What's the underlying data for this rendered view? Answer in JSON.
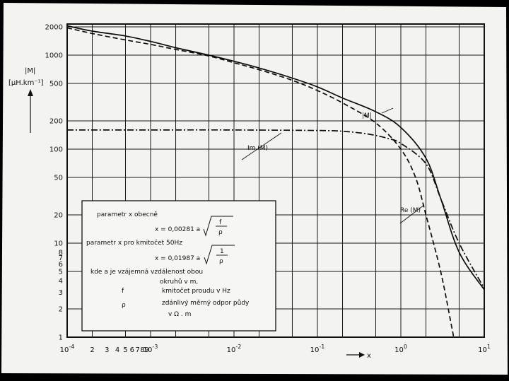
{
  "chart_data": {
    "type": "line",
    "x_scale": "log",
    "y_scale": "log",
    "xlim": [
      0.0001,
      10
    ],
    "ylim": [
      1,
      3000
    ],
    "grid": true,
    "xlabel": "x",
    "ylabel_line1": "|M|",
    "ylabel_line2": "[μH.km⁻¹]",
    "x_major_ticks": [
      {
        "value": 0.0001,
        "base": "10",
        "exp": "-4"
      },
      {
        "value": 0.001,
        "base": "10",
        "exp": "-3"
      },
      {
        "value": 0.01,
        "base": "10",
        "exp": "-2"
      },
      {
        "value": 0.1,
        "base": "10",
        "exp": "-1"
      },
      {
        "value": 1,
        "base": "10",
        "exp": "0"
      },
      {
        "value": 10,
        "base": "10",
        "exp": "1"
      }
    ],
    "x_minor_ticks": [
      {
        "value": 0.0002,
        "label": "2"
      },
      {
        "value": 0.0003,
        "label": "3"
      },
      {
        "value": 0.0004,
        "label": "4"
      },
      {
        "value": 0.0005,
        "label": "5"
      },
      {
        "value": 0.0006,
        "label": "6"
      },
      {
        "value": 0.0007,
        "label": "7"
      },
      {
        "value": 0.0008,
        "label": "8"
      },
      {
        "value": 0.0009,
        "label": "9"
      }
    ],
    "y_ticks": [
      {
        "value": 2000,
        "label": "2000"
      },
      {
        "value": 1000,
        "label": "1000"
      },
      {
        "value": 500,
        "label": "500"
      },
      {
        "value": 200,
        "label": "200"
      },
      {
        "value": 100,
        "label": "100"
      },
      {
        "value": 50,
        "label": "50"
      },
      {
        "value": 20,
        "label": "20"
      },
      {
        "value": 10,
        "label": "10"
      },
      {
        "value": 8,
        "label": "8"
      },
      {
        "value": 7,
        "label": "7"
      },
      {
        "value": 6,
        "label": "6"
      },
      {
        "value": 5,
        "label": "5"
      },
      {
        "value": 4,
        "label": "4"
      },
      {
        "value": 3,
        "label": "3"
      },
      {
        "value": 2,
        "label": "2"
      },
      {
        "value": 1,
        "label": "1"
      }
    ],
    "y_grid": [
      2000,
      1000,
      500,
      200,
      100,
      50,
      20,
      10,
      5,
      2
    ],
    "series": [
      {
        "name": "|M|",
        "style": "solid",
        "points": [
          [
            0.0001,
            2050
          ],
          [
            0.0002,
            1800
          ],
          [
            0.0005,
            1600
          ],
          [
            0.001,
            1400
          ],
          [
            0.002,
            1200
          ],
          [
            0.005,
            1000
          ],
          [
            0.01,
            860
          ],
          [
            0.02,
            730
          ],
          [
            0.05,
            570
          ],
          [
            0.1,
            460
          ],
          [
            0.2,
            350
          ],
          [
            0.5,
            250
          ],
          [
            1,
            170
          ],
          [
            2,
            80
          ],
          [
            3,
            30
          ],
          [
            5,
            8
          ],
          [
            10,
            3.2
          ]
        ]
      },
      {
        "name": "Re(M)",
        "style": "dashed",
        "points": [
          [
            0.0001,
            1950
          ],
          [
            0.0002,
            1700
          ],
          [
            0.0005,
            1450
          ],
          [
            0.001,
            1300
          ],
          [
            0.002,
            1150
          ],
          [
            0.005,
            980
          ],
          [
            0.01,
            830
          ],
          [
            0.02,
            700
          ],
          [
            0.05,
            540
          ],
          [
            0.1,
            420
          ],
          [
            0.2,
            310
          ],
          [
            0.5,
            190
          ],
          [
            1,
            100
          ],
          [
            1.5,
            50
          ],
          [
            2,
            20
          ],
          [
            3,
            5
          ],
          [
            4,
            1.4
          ],
          [
            4.3,
            1
          ]
        ]
      },
      {
        "name": "Im(M)",
        "style": "dashdot",
        "points": [
          [
            0.0001,
            160
          ],
          [
            0.001,
            160
          ],
          [
            0.01,
            160
          ],
          [
            0.1,
            158
          ],
          [
            0.2,
            155
          ],
          [
            0.4,
            145
          ],
          [
            0.7,
            130
          ],
          [
            1,
            115
          ],
          [
            2,
            70
          ],
          [
            3,
            30
          ],
          [
            5,
            10
          ],
          [
            10,
            3.3
          ]
        ]
      }
    ],
    "series_labels": {
      "modM": "|M|",
      "imM": "Im (M)",
      "reM": "Re (M)"
    },
    "annotation": {
      "line1": "parametr  x  obecně",
      "formula1": "x = 0,00281  a",
      "frac1_num": "f",
      "frac1_den": "ρ",
      "line2": "parametr  x  pro  kmitočet  50Hz",
      "formula2": "x = 0,01987  a",
      "frac2_num": "1",
      "frac2_den": "ρ",
      "line3": "kde  a  je  vzájemná  vzdálenost  obou",
      "line4": "okruhů  v  m,",
      "line5_sym": "f",
      "line5_text": "kmitočet  proudu  v  Hz",
      "line6_sym": "ρ",
      "line6_text": "zdánlivý  měrný  odpor  půdy",
      "line7": "v  Ω . m"
    }
  }
}
